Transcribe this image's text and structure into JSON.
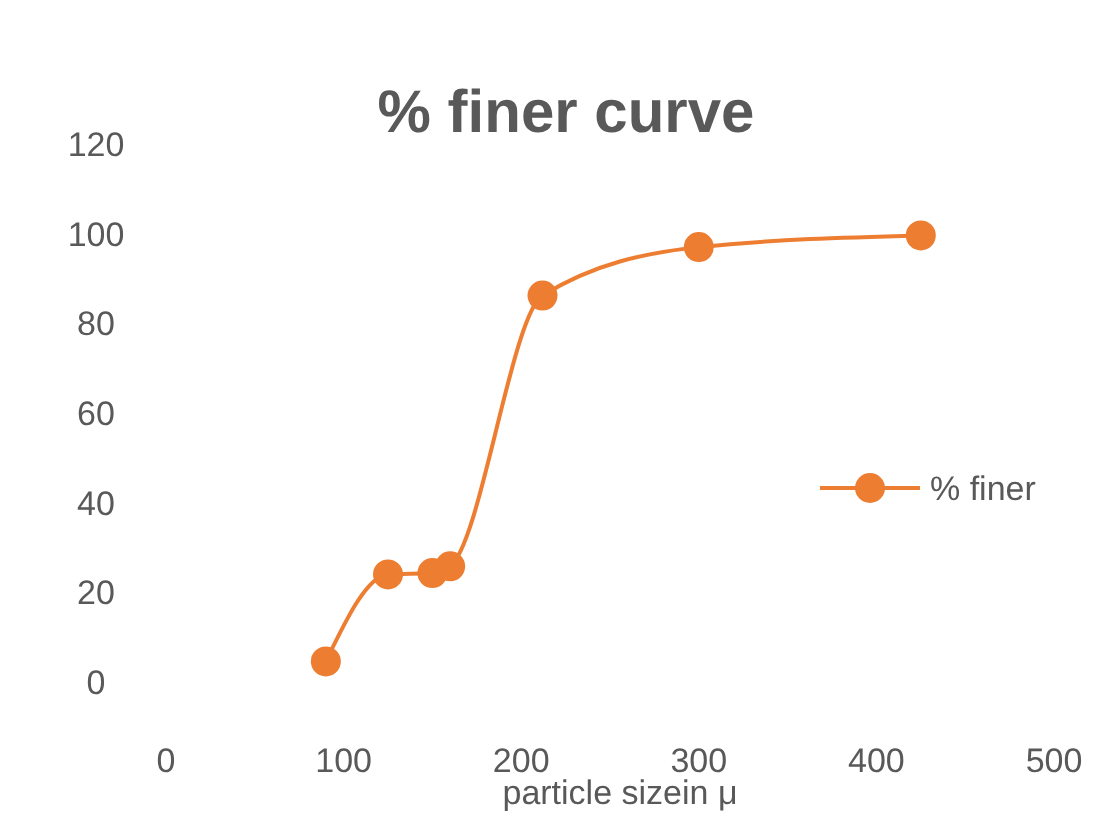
{
  "chart_data": {
    "type": "line",
    "title": "% finer curve",
    "xlabel": "particle sizein μ",
    "x": [
      90,
      125,
      150,
      160,
      212,
      300,
      425
    ],
    "series": [
      {
        "name": "% finer",
        "color": "#ed7d31",
        "values": [
          4.6,
          24,
          24.3,
          25.8,
          86.2,
          97,
          99.6
        ]
      }
    ],
    "xlim": [
      0,
      500
    ],
    "xticks": [
      0,
      100,
      200,
      300,
      400,
      500
    ],
    "ylim": [
      0,
      120
    ],
    "yticks": [
      0,
      20,
      40,
      60,
      80,
      100,
      120
    ],
    "grid": false,
    "legend": "right",
    "marker": "circle",
    "line_style": "solid"
  }
}
